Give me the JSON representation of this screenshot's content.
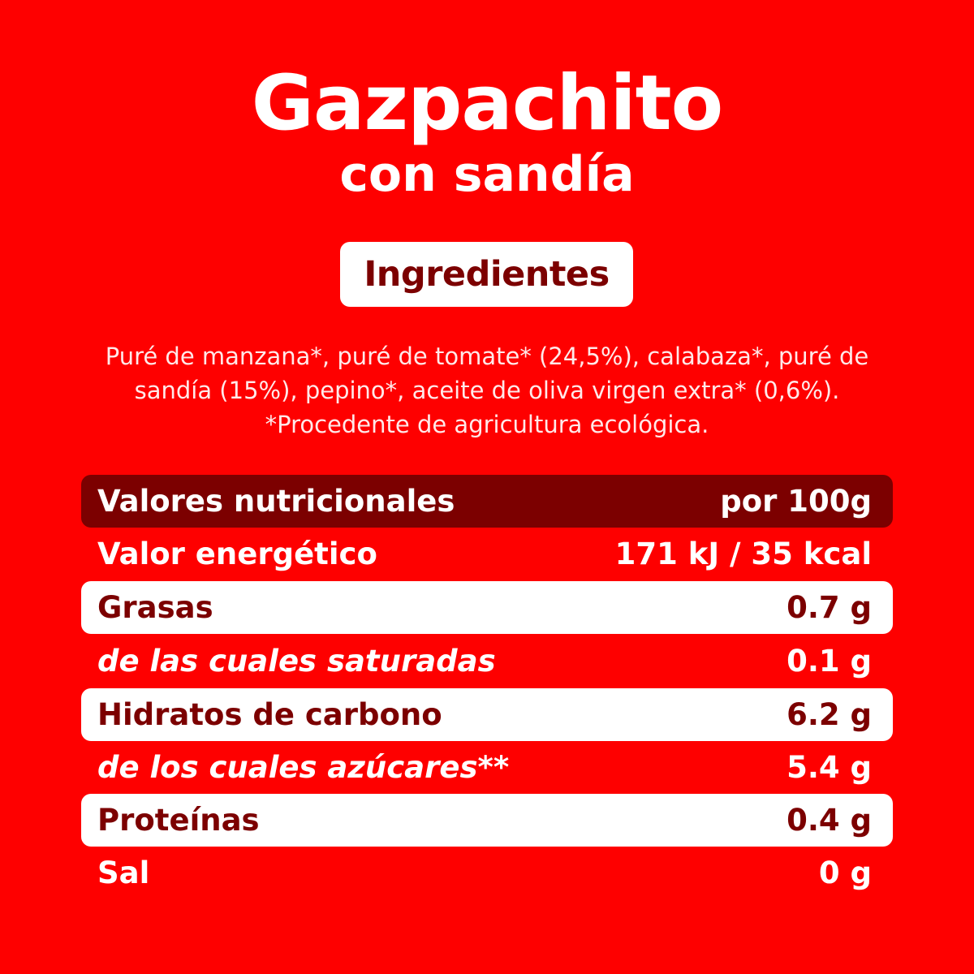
{
  "product": {
    "title": "Gazpachito",
    "subtitle": "con sandía"
  },
  "ingredients": {
    "heading": "Ingredientes",
    "lines": [
      "Puré de manzana*, puré de tomate* (24,5%), calabaza*, puré de",
      "sandía (15%), pepino*, aceite de oliva virgen extra* (0,6%).",
      "*Procedente de agricultura ecológica."
    ]
  },
  "nutrition": {
    "header_label": "Valores nutricionales",
    "header_value": "por 100g",
    "rows": [
      {
        "label": "Valor energético",
        "value": "171 kJ / 35 kcal"
      },
      {
        "label": "Grasas",
        "value": "0.7 g"
      },
      {
        "label": "de las cuales saturadas",
        "value": "0.1 g"
      },
      {
        "label": "Hidratos de carbono",
        "value": "6.2 g"
      },
      {
        "label": "de los cuales azúcares**",
        "value": "5.4 g"
      },
      {
        "label": "Proteínas",
        "value": "0.4 g"
      },
      {
        "label": "Sal",
        "value": "0 g"
      }
    ]
  },
  "colors": {
    "background": "#fe0000",
    "dark_red": "#7c0000",
    "white": "#ffffff"
  }
}
